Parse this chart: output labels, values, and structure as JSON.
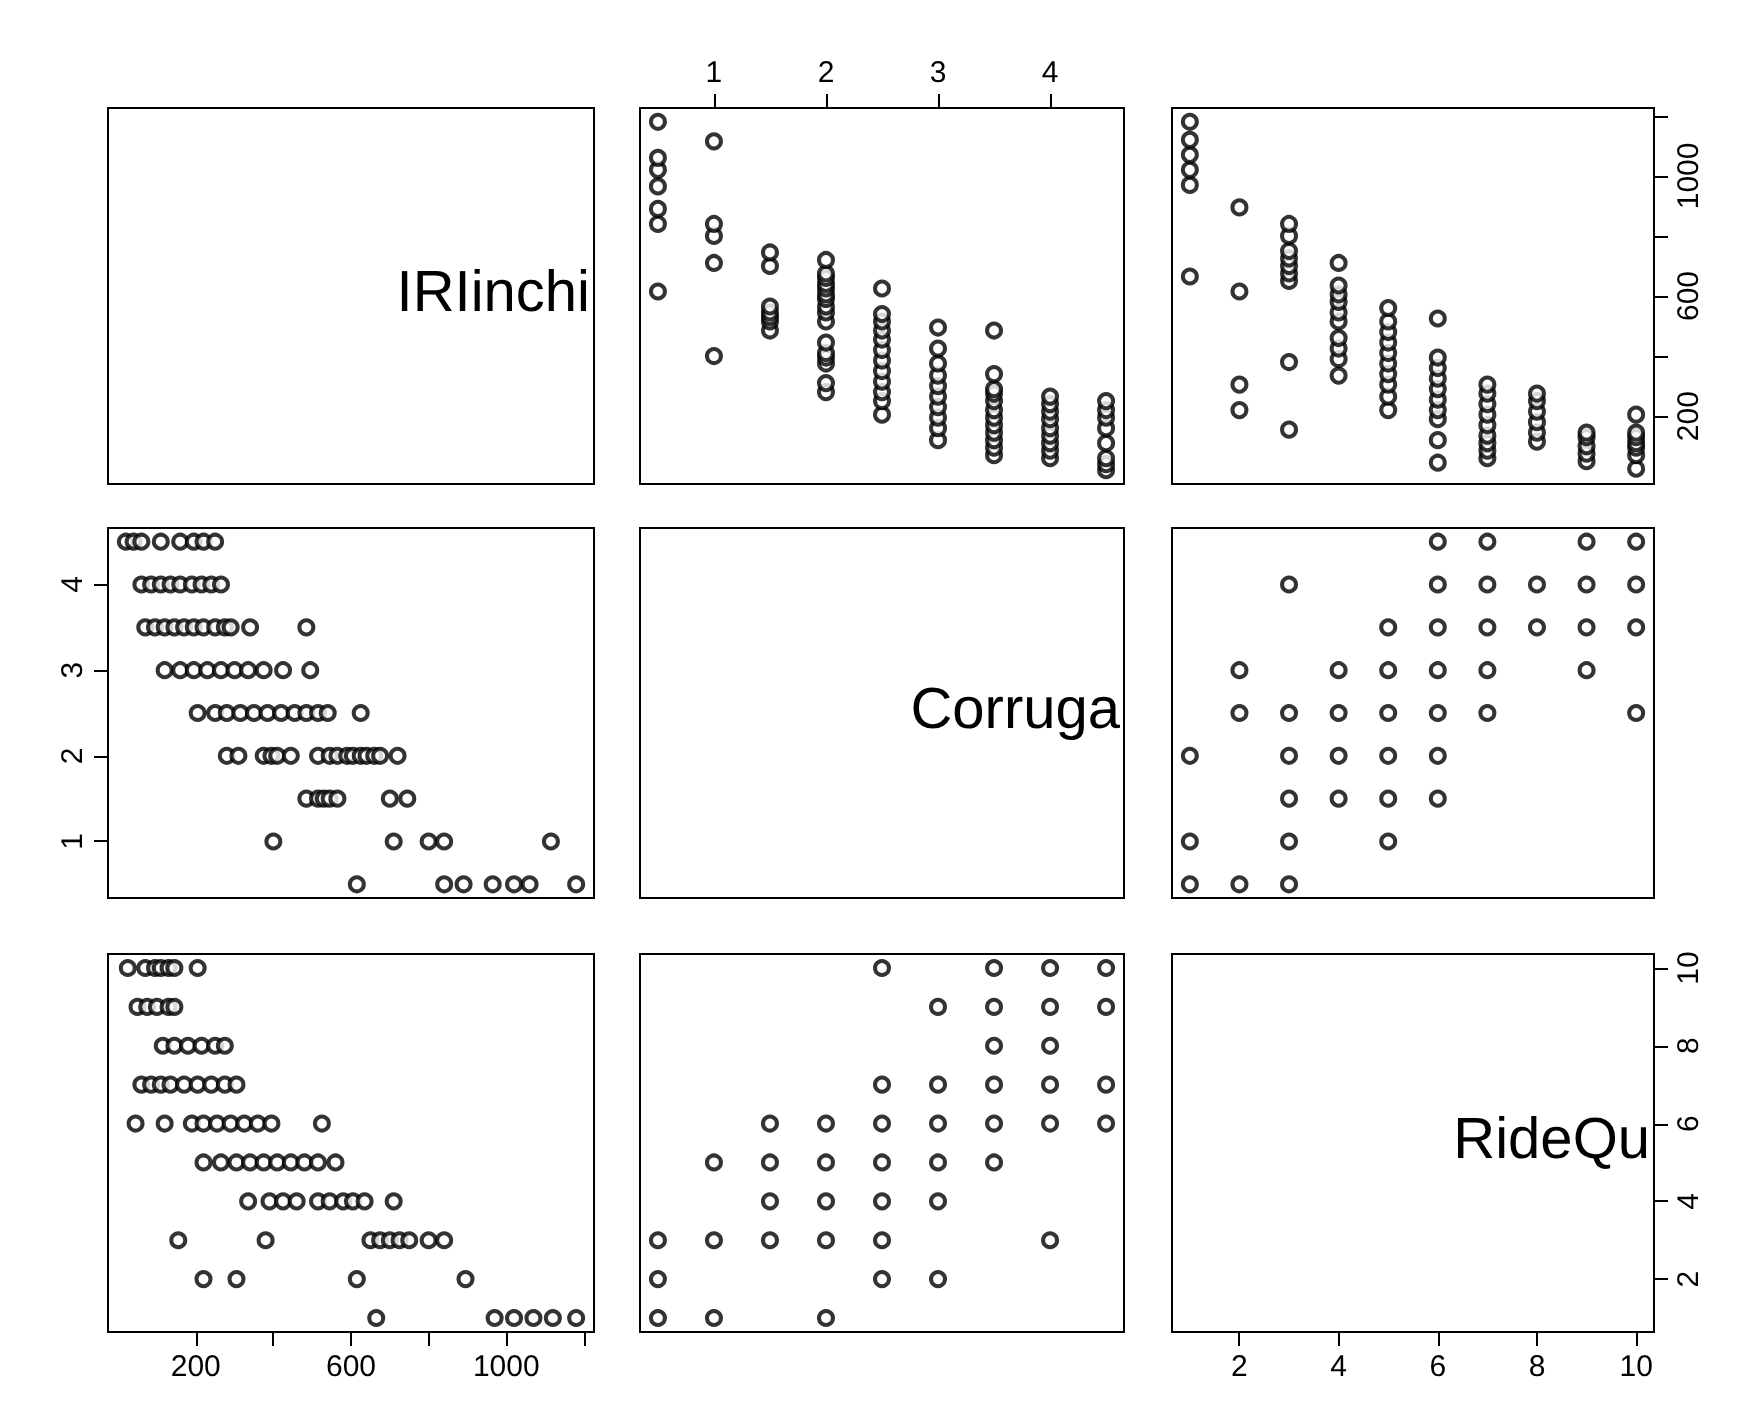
{
  "chart_data": [
    {
      "type": "other",
      "title": "IRIinchi"
    },
    {
      "type": "scatter",
      "color": "#000000",
      "marker": "circle",
      "grid": false,
      "tick_labels": "x",
      "xlim": [
        0.34,
        4.66
      ],
      "xticks": [
        1,
        2,
        3,
        4
      ],
      "ylim": [
        -26,
        1226
      ],
      "x": [
        4.5,
        4.5,
        4.5,
        4.5,
        4.5,
        4.5,
        4.5,
        4.5,
        4,
        4,
        4,
        4,
        4,
        4,
        4,
        4,
        4,
        3.5,
        3.5,
        3.5,
        3.5,
        3.5,
        3.5,
        3.5,
        3.5,
        3.5,
        3.5,
        3.5,
        3.5,
        3,
        3,
        3,
        3,
        3,
        3,
        3,
        3,
        3,
        3,
        2.5,
        2.5,
        2.5,
        2.5,
        2.5,
        2.5,
        2.5,
        2.5,
        2.5,
        2.5,
        2.5,
        2.5,
        2,
        2,
        2,
        2,
        2,
        2,
        2,
        2,
        2,
        2,
        2,
        2,
        2,
        2,
        2,
        2,
        1.5,
        1.5,
        1.5,
        1.5,
        1.5,
        1.5,
        1.5,
        1,
        1,
        1,
        1,
        1,
        0.5,
        0.5,
        0.5,
        0.5,
        0.5,
        0.5,
        0.5
      ],
      "values": [
        20,
        40,
        60,
        110,
        160,
        195,
        220,
        250,
        60,
        85,
        110,
        135,
        160,
        190,
        215,
        240,
        265,
        70,
        95,
        120,
        145,
        170,
        195,
        220,
        250,
        275,
        290,
        340,
        485,
        120,
        160,
        195,
        230,
        265,
        300,
        335,
        375,
        425,
        495,
        205,
        250,
        280,
        315,
        350,
        385,
        420,
        455,
        485,
        515,
        540,
        625,
        280,
        310,
        375,
        395,
        410,
        445,
        515,
        545,
        565,
        590,
        605,
        625,
        640,
        660,
        675,
        720,
        485,
        515,
        530,
        545,
        565,
        700,
        745,
        400,
        710,
        800,
        840,
        1115,
        615,
        840,
        890,
        965,
        1020,
        1060,
        1180
      ]
    },
    {
      "type": "scatter",
      "color": "#000000",
      "marker": "circle",
      "grid": false,
      "tick_labels": "y",
      "xlim": [
        0.64,
        10.36
      ],
      "ylim": [
        -26,
        1226
      ],
      "yticks": [
        200,
        {
          "value": 400,
          "label": null
        },
        600,
        {
          "value": 800,
          "label": null
        },
        1000,
        {
          "value": 1200,
          "label": null
        }
      ],
      "x": [
        10,
        10,
        10,
        10,
        10,
        10,
        10,
        9,
        9,
        9,
        9,
        9,
        8,
        8,
        8,
        8,
        8,
        8,
        7,
        7,
        7,
        7,
        7,
        7,
        7,
        7,
        7,
        6,
        6,
        6,
        6,
        6,
        6,
        6,
        6,
        6,
        6,
        5,
        5,
        5,
        5,
        5,
        5,
        5,
        5,
        5,
        5,
        4,
        4,
        4,
        4,
        4,
        4,
        4,
        4,
        4,
        4,
        3,
        3,
        3,
        3,
        3,
        3,
        3,
        3,
        3,
        2,
        2,
        2,
        2,
        1,
        1,
        1,
        1,
        1,
        1
      ],
      "values": [
        25,
        70,
        95,
        110,
        130,
        145,
        205,
        50,
        75,
        100,
        130,
        145,
        115,
        145,
        180,
        215,
        250,
        275,
        60,
        85,
        110,
        135,
        170,
        205,
        240,
        275,
        305,
        45,
        120,
        190,
        220,
        255,
        290,
        325,
        360,
        395,
        525,
        220,
        265,
        305,
        340,
        375,
        410,
        445,
        480,
        515,
        560,
        335,
        390,
        425,
        460,
        515,
        545,
        580,
        605,
        635,
        710,
        155,
        380,
        650,
        675,
        700,
        725,
        750,
        800,
        840,
        220,
        305,
        615,
        895,
        665,
        970,
        1020,
        1070,
        1120,
        1180
      ]
    },
    {
      "type": "scatter",
      "color": "#000000",
      "marker": "circle",
      "grid": false,
      "tick_labels": "y",
      "xlim": [
        -26,
        1226
      ],
      "ylim": [
        0.34,
        4.66
      ],
      "yticks": [
        1,
        2,
        3,
        4
      ],
      "x": [
        20,
        40,
        60,
        110,
        160,
        195,
        220,
        250,
        60,
        85,
        110,
        135,
        160,
        190,
        215,
        240,
        265,
        70,
        95,
        120,
        145,
        170,
        195,
        220,
        250,
        275,
        290,
        340,
        485,
        120,
        160,
        195,
        230,
        265,
        300,
        335,
        375,
        425,
        495,
        205,
        250,
        280,
        315,
        350,
        385,
        420,
        455,
        485,
        515,
        540,
        625,
        280,
        310,
        375,
        395,
        410,
        445,
        515,
        545,
        565,
        590,
        605,
        625,
        640,
        660,
        675,
        720,
        485,
        515,
        530,
        545,
        565,
        700,
        745,
        400,
        710,
        800,
        840,
        1115,
        615,
        840,
        890,
        965,
        1020,
        1060,
        1180
      ],
      "values": [
        4.5,
        4.5,
        4.5,
        4.5,
        4.5,
        4.5,
        4.5,
        4.5,
        4,
        4,
        4,
        4,
        4,
        4,
        4,
        4,
        4,
        3.5,
        3.5,
        3.5,
        3.5,
        3.5,
        3.5,
        3.5,
        3.5,
        3.5,
        3.5,
        3.5,
        3.5,
        3,
        3,
        3,
        3,
        3,
        3,
        3,
        3,
        3,
        3,
        2.5,
        2.5,
        2.5,
        2.5,
        2.5,
        2.5,
        2.5,
        2.5,
        2.5,
        2.5,
        2.5,
        2.5,
        2,
        2,
        2,
        2,
        2,
        2,
        2,
        2,
        2,
        2,
        2,
        2,
        2,
        2,
        2,
        2,
        1.5,
        1.5,
        1.5,
        1.5,
        1.5,
        1.5,
        1.5,
        1,
        1,
        1,
        1,
        1,
        0.5,
        0.5,
        0.5,
        0.5,
        0.5,
        0.5,
        0.5
      ]
    },
    {
      "type": "other",
      "title": "Corruga"
    },
    {
      "type": "scatter",
      "color": "#000000",
      "marker": "circle",
      "grid": false,
      "tick_labels": false,
      "xlim": [
        0.64,
        10.36
      ],
      "ylim": [
        0.34,
        4.66
      ],
      "x": [
        10,
        10,
        10,
        10,
        9,
        9,
        9,
        9,
        8,
        8,
        7,
        7,
        7,
        7,
        7,
        6,
        6,
        6,
        6,
        6,
        6,
        6,
        5,
        5,
        5,
        5,
        5,
        5,
        4,
        4,
        4,
        4,
        3,
        3,
        3,
        3,
        3,
        3,
        2,
        2,
        2,
        1,
        1,
        1
      ],
      "values": [
        2.5,
        3.5,
        4,
        4.5,
        3,
        3.5,
        4,
        4.5,
        3.5,
        4,
        2.5,
        3,
        3.5,
        4,
        4.5,
        1.5,
        2,
        2.5,
        3,
        3.5,
        4,
        4.5,
        1,
        1.5,
        2,
        2.5,
        3,
        3.5,
        1.5,
        2,
        2.5,
        3,
        0.5,
        1,
        1.5,
        2,
        2.5,
        4,
        0.5,
        2.5,
        3,
        0.5,
        1,
        2
      ]
    },
    {
      "type": "scatter",
      "color": "#000000",
      "marker": "circle",
      "grid": false,
      "tick_labels": "x",
      "xlim": [
        -26,
        1226
      ],
      "xticks": [
        200,
        {
          "value": 400,
          "label": null
        },
        600,
        {
          "value": 800,
          "label": null
        },
        1000,
        {
          "value": 1200,
          "label": null
        }
      ],
      "ylim": [
        0.64,
        10.36
      ],
      "x": [
        25,
        70,
        95,
        110,
        130,
        145,
        205,
        50,
        75,
        100,
        130,
        145,
        115,
        145,
        180,
        215,
        250,
        275,
        60,
        85,
        110,
        135,
        170,
        205,
        240,
        275,
        305,
        45,
        120,
        190,
        220,
        255,
        290,
        325,
        360,
        395,
        525,
        220,
        265,
        305,
        340,
        375,
        410,
        445,
        480,
        515,
        560,
        335,
        390,
        425,
        460,
        515,
        545,
        580,
        605,
        635,
        710,
        155,
        380,
        650,
        675,
        700,
        725,
        750,
        800,
        840,
        220,
        305,
        615,
        895,
        665,
        970,
        1020,
        1070,
        1120,
        1180
      ],
      "values": [
        10,
        10,
        10,
        10,
        10,
        10,
        10,
        9,
        9,
        9,
        9,
        9,
        8,
        8,
        8,
        8,
        8,
        8,
        7,
        7,
        7,
        7,
        7,
        7,
        7,
        7,
        7,
        6,
        6,
        6,
        6,
        6,
        6,
        6,
        6,
        6,
        6,
        5,
        5,
        5,
        5,
        5,
        5,
        5,
        5,
        5,
        5,
        4,
        4,
        4,
        4,
        4,
        4,
        4,
        4,
        4,
        4,
        3,
        3,
        3,
        3,
        3,
        3,
        3,
        3,
        3,
        2,
        2,
        2,
        2,
        1,
        1,
        1,
        1,
        1,
        1
      ]
    },
    {
      "type": "scatter",
      "color": "#000000",
      "marker": "circle",
      "grid": false,
      "tick_labels": false,
      "xlim": [
        0.34,
        4.66
      ],
      "ylim": [
        0.64,
        10.36
      ],
      "x": [
        2.5,
        3.5,
        4,
        4.5,
        3,
        3.5,
        4,
        4.5,
        3.5,
        4,
        2.5,
        3,
        3.5,
        4,
        4.5,
        1.5,
        2,
        2.5,
        3,
        3.5,
        4,
        4.5,
        1,
        1.5,
        2,
        2.5,
        3,
        3.5,
        1.5,
        2,
        2.5,
        3,
        0.5,
        1,
        1.5,
        2,
        2.5,
        4,
        0.5,
        2.5,
        3,
        0.5,
        1,
        2
      ],
      "values": [
        10,
        10,
        10,
        10,
        9,
        9,
        9,
        9,
        8,
        8,
        7,
        7,
        7,
        7,
        7,
        6,
        6,
        6,
        6,
        6,
        6,
        6,
        5,
        5,
        5,
        5,
        5,
        5,
        4,
        4,
        4,
        4,
        3,
        3,
        3,
        3,
        3,
        3,
        2,
        2,
        2,
        1,
        1,
        1
      ]
    },
    {
      "type": "scatter",
      "title": "RideQu",
      "color": "#000000",
      "marker": "circle",
      "grid": false,
      "xlim": [
        0.64,
        10.36
      ],
      "xticks": [
        2,
        4,
        6,
        8,
        10
      ],
      "ylim": [
        0.64,
        10.36
      ],
      "yticks": [
        2,
        4,
        6,
        8,
        10
      ]
    }
  ]
}
